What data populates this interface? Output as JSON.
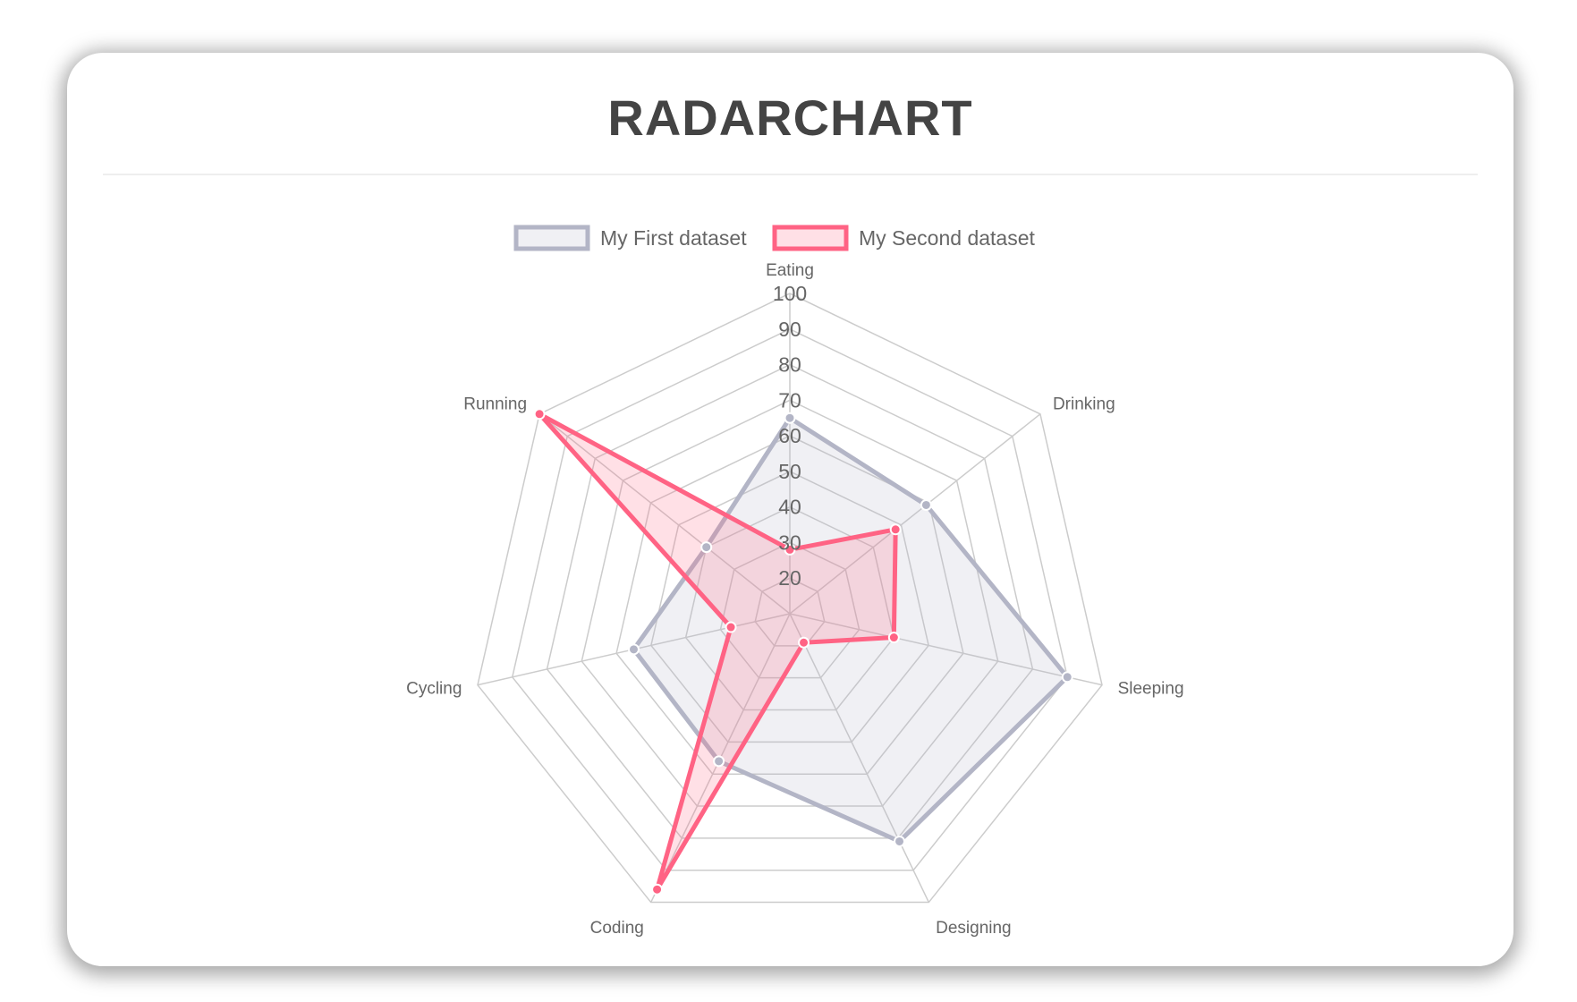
{
  "title": "RADARCHART",
  "chart_data": {
    "type": "radar",
    "title": "",
    "labels": [
      "Eating",
      "Drinking",
      "Sleeping",
      "Designing",
      "Coding",
      "Cycling",
      "Running"
    ],
    "scale": {
      "min": 10,
      "max": 100,
      "step": 10,
      "tick_labels": [
        "20",
        "30",
        "40",
        "50",
        "60",
        "70",
        "80",
        "90",
        "100"
      ]
    },
    "legend_position": "top",
    "series": [
      {
        "name": "My First dataset",
        "values": [
          65,
          59,
          90,
          81,
          56,
          55,
          40
        ],
        "border": "#b3b5c6",
        "fill": "rgba(179,181,198,0.2)"
      },
      {
        "name": "My Second dataset",
        "values": [
          28,
          48,
          40,
          19,
          96,
          27,
          100
        ],
        "border": "#ff6384",
        "fill": "rgba(255,99,132,0.2)"
      }
    ],
    "grid_color": "#cccccc"
  }
}
